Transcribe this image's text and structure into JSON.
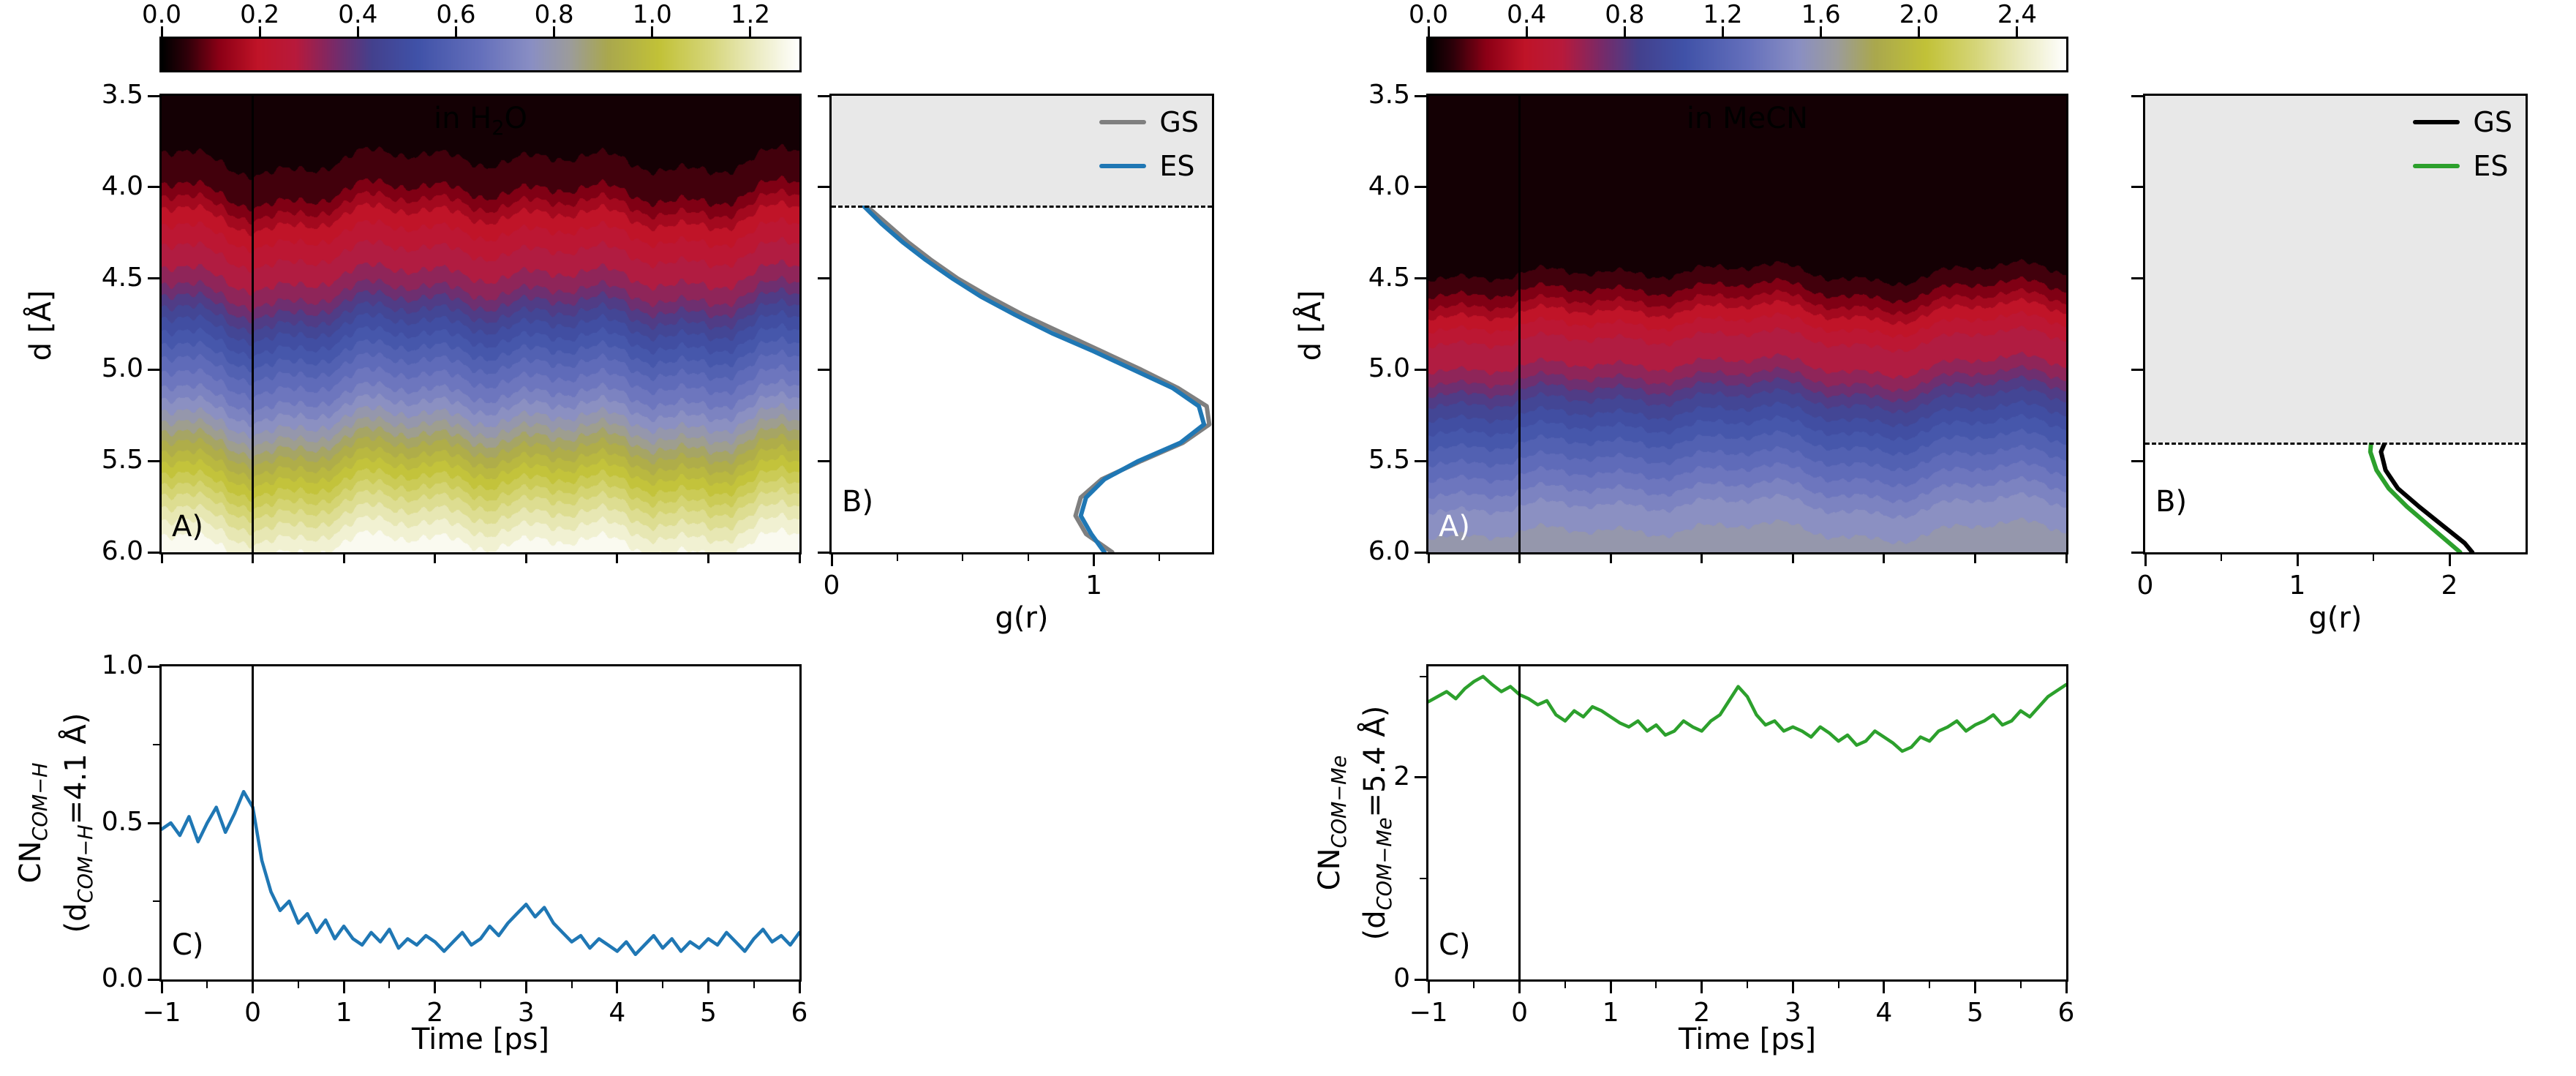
{
  "figure_background": "#ffffff",
  "colormap_stops": [
    [
      0.0,
      "#000000"
    ],
    [
      0.04,
      "#30000a"
    ],
    [
      0.09,
      "#8c0016"
    ],
    [
      0.15,
      "#c01428"
    ],
    [
      0.21,
      "#b81a3c"
    ],
    [
      0.27,
      "#7a2a68"
    ],
    [
      0.33,
      "#44418e"
    ],
    [
      0.4,
      "#4052a8"
    ],
    [
      0.5,
      "#6570bc"
    ],
    [
      0.58,
      "#8a8fc4"
    ],
    [
      0.64,
      "#9c9c9c"
    ],
    [
      0.7,
      "#aaa84e"
    ],
    [
      0.78,
      "#c2c238"
    ],
    [
      0.86,
      "#d6d67a"
    ],
    [
      0.93,
      "#ebebc0"
    ],
    [
      1.0,
      "#ffffff"
    ]
  ],
  "chart_data": [
    {
      "id": "h2o_heatmap",
      "type": "heatmap",
      "panel_label": "A)",
      "panel_label_color": "#000000",
      "title_pre": "in H",
      "title_sub": "2",
      "title_post": "O",
      "ylabel": "d [Å]",
      "x_range": [
        -1,
        6
      ],
      "d_range": [
        3.5,
        6.0
      ],
      "ytick_labels": [
        "3.5",
        "4.0",
        "4.5",
        "5.0",
        "5.5",
        "6.0"
      ],
      "ytick_values": [
        3.5,
        4.0,
        4.5,
        5.0,
        5.5,
        6.0
      ],
      "xtick_values": [
        -1,
        0,
        1,
        2,
        3,
        4,
        5,
        6
      ],
      "event_time": 0,
      "vmax": 1.3,
      "levels": 30,
      "noise_amp": 0.1,
      "colorbar": {
        "tick_labels": [
          "0.0",
          "0.2",
          "0.4",
          "0.6",
          "0.8",
          "1.0",
          "1.2"
        ],
        "tick_values": [
          0,
          0.2,
          0.4,
          0.6,
          0.8,
          1.0,
          1.2
        ]
      },
      "profile": [
        [
          3.5,
          0.02
        ],
        [
          3.95,
          0.05
        ],
        [
          4.05,
          0.1
        ],
        [
          4.15,
          0.17
        ],
        [
          4.3,
          0.24
        ],
        [
          4.45,
          0.29
        ],
        [
          4.55,
          0.33
        ],
        [
          4.65,
          0.4
        ],
        [
          4.75,
          0.47
        ],
        [
          4.85,
          0.53
        ],
        [
          5.0,
          0.62
        ],
        [
          5.15,
          0.7
        ],
        [
          5.3,
          0.8
        ],
        [
          5.45,
          0.92
        ],
        [
          5.6,
          1.03
        ],
        [
          5.75,
          1.14
        ],
        [
          5.9,
          1.23
        ],
        [
          6.0,
          1.28
        ]
      ]
    },
    {
      "id": "h2o_gr",
      "type": "line",
      "panel_label": "B)",
      "xlabel": "g(r)",
      "x_range": [
        0,
        1.45
      ],
      "xtick_labels": [
        "0",
        "1"
      ],
      "xtick_values": [
        0,
        1
      ],
      "xminor_values": [
        0.25,
        0.5,
        0.75,
        1.25
      ],
      "d_range": [
        3.5,
        6.0
      ],
      "cutoff_d": 4.1,
      "shade_color": "#e8e8e8",
      "legend": [
        {
          "label": "GS",
          "color": "#7f7f7f"
        },
        {
          "label": "ES",
          "color": "#1f77b4"
        }
      ],
      "series": [
        {
          "name": "GS",
          "color": "#7f7f7f",
          "points": [
            [
              3.5,
              0.09
            ],
            [
              3.8,
              0.09
            ],
            [
              3.85,
              0.05
            ],
            [
              3.9,
              0.03
            ],
            [
              4.0,
              0.07
            ],
            [
              4.1,
              0.13
            ],
            [
              4.2,
              0.21
            ],
            [
              4.3,
              0.29
            ],
            [
              4.4,
              0.38
            ],
            [
              4.5,
              0.48
            ],
            [
              4.6,
              0.6
            ],
            [
              4.7,
              0.73
            ],
            [
              4.8,
              0.88
            ],
            [
              4.9,
              1.03
            ],
            [
              5.0,
              1.18
            ],
            [
              5.1,
              1.32
            ],
            [
              5.2,
              1.43
            ],
            [
              5.3,
              1.44
            ],
            [
              5.4,
              1.34
            ],
            [
              5.5,
              1.18
            ],
            [
              5.6,
              1.03
            ],
            [
              5.7,
              0.95
            ],
            [
              5.8,
              0.93
            ],
            [
              5.9,
              0.97
            ],
            [
              6.0,
              1.07
            ]
          ]
        },
        {
          "name": "ES",
          "color": "#1f77b4",
          "points": [
            [
              3.5,
              0.01
            ],
            [
              3.7,
              0.01
            ],
            [
              3.9,
              0.03
            ],
            [
              4.0,
              0.06
            ],
            [
              4.1,
              0.12
            ],
            [
              4.2,
              0.19
            ],
            [
              4.3,
              0.27
            ],
            [
              4.4,
              0.36
            ],
            [
              4.5,
              0.46
            ],
            [
              4.6,
              0.57
            ],
            [
              4.7,
              0.7
            ],
            [
              4.8,
              0.84
            ],
            [
              4.9,
              1.0
            ],
            [
              5.0,
              1.15
            ],
            [
              5.1,
              1.3
            ],
            [
              5.2,
              1.4
            ],
            [
              5.3,
              1.42
            ],
            [
              5.4,
              1.33
            ],
            [
              5.5,
              1.17
            ],
            [
              5.6,
              1.04
            ],
            [
              5.7,
              0.97
            ],
            [
              5.8,
              0.95
            ],
            [
              5.9,
              0.99
            ],
            [
              6.0,
              1.04
            ]
          ]
        }
      ]
    },
    {
      "id": "h2o_cn",
      "type": "line",
      "panel_label": "C)",
      "xlabel": "Time [ps]",
      "ylabel_main": "CN",
      "ylabel_main_sub": "COM−H",
      "ylabel_paren_pre": "(d",
      "ylabel_paren_sub": "COM−H",
      "ylabel_paren_post": "=4.1 Å)",
      "x_range": [
        -1,
        6
      ],
      "xtick_labels": [
        "−1",
        "0",
        "1",
        "2",
        "3",
        "4",
        "5",
        "6"
      ],
      "xtick_values": [
        -1,
        0,
        1,
        2,
        3,
        4,
        5,
        6
      ],
      "y_range": [
        0,
        1.0
      ],
      "ytick_labels": [
        "0.0",
        "0.5",
        "1.0"
      ],
      "ytick_values": [
        0,
        0.5,
        1.0
      ],
      "yminor_values": [
        0.25,
        0.75
      ],
      "event_time": 0,
      "color": "#1f77b4",
      "t_start": -1,
      "t_step": 0.1,
      "values": [
        0.48,
        0.5,
        0.46,
        0.52,
        0.44,
        0.5,
        0.55,
        0.47,
        0.53,
        0.6,
        0.55,
        0.38,
        0.28,
        0.22,
        0.25,
        0.18,
        0.21,
        0.15,
        0.19,
        0.13,
        0.17,
        0.13,
        0.11,
        0.15,
        0.12,
        0.16,
        0.1,
        0.13,
        0.11,
        0.14,
        0.12,
        0.09,
        0.12,
        0.15,
        0.11,
        0.13,
        0.17,
        0.14,
        0.18,
        0.21,
        0.24,
        0.2,
        0.23,
        0.18,
        0.15,
        0.12,
        0.14,
        0.1,
        0.13,
        0.11,
        0.09,
        0.12,
        0.08,
        0.11,
        0.14,
        0.1,
        0.13,
        0.09,
        0.12,
        0.1,
        0.13,
        0.11,
        0.15,
        0.12,
        0.09,
        0.13,
        0.16,
        0.12,
        0.14,
        0.11,
        0.15
      ]
    },
    {
      "id": "mecn_heatmap",
      "type": "heatmap",
      "panel_label": "A)",
      "panel_label_color": "#ffffff",
      "title_pre": "in MeCN",
      "title_sub": "",
      "title_post": "",
      "ylabel": "d [Å]",
      "x_range": [
        -1,
        6
      ],
      "d_range": [
        3.5,
        6.0
      ],
      "ytick_labels": [
        "3.5",
        "4.0",
        "4.5",
        "5.0",
        "5.5",
        "6.0"
      ],
      "ytick_values": [
        3.5,
        4.0,
        4.5,
        5.0,
        5.5,
        6.0
      ],
      "xtick_values": [
        -1,
        0,
        1,
        2,
        3,
        4,
        5,
        6
      ],
      "event_time": 0,
      "vmax": 2.6,
      "levels": 30,
      "noise_amp": 0.07,
      "colorbar": {
        "tick_labels": [
          "0.0",
          "0.4",
          "0.8",
          "1.2",
          "1.6",
          "2.0",
          "2.4"
        ],
        "tick_values": [
          0,
          0.4,
          0.8,
          1.2,
          1.6,
          2.0,
          2.4
        ]
      },
      "profile": [
        [
          3.5,
          0.02
        ],
        [
          4.35,
          0.04
        ],
        [
          4.5,
          0.1
        ],
        [
          4.6,
          0.22
        ],
        [
          4.7,
          0.38
        ],
        [
          4.85,
          0.54
        ],
        [
          5.0,
          0.62
        ],
        [
          5.15,
          0.85
        ],
        [
          5.35,
          1.08
        ],
        [
          5.55,
          1.28
        ],
        [
          5.75,
          1.48
        ],
        [
          5.9,
          1.57
        ],
        [
          6.0,
          1.64
        ]
      ]
    },
    {
      "id": "mecn_gr",
      "type": "line",
      "panel_label": "B)",
      "xlabel": "g(r)",
      "x_range": [
        0,
        2.5
      ],
      "xtick_labels": [
        "0",
        "1",
        "2"
      ],
      "xtick_values": [
        0,
        1,
        2
      ],
      "xminor_values": [
        0.5,
        1.5
      ],
      "d_range": [
        3.5,
        6.0
      ],
      "cutoff_d": 5.4,
      "shade_color": "#e8e8e8",
      "legend": [
        {
          "label": "GS",
          "color": "#000000"
        },
        {
          "label": "ES",
          "color": "#2ca02c"
        }
      ],
      "series": [
        {
          "name": "GS",
          "color": "#000000",
          "points": [
            [
              3.5,
              0.01
            ],
            [
              4.3,
              0.02
            ],
            [
              4.45,
              0.06
            ],
            [
              4.55,
              0.14
            ],
            [
              4.65,
              0.32
            ],
            [
              4.75,
              0.6
            ],
            [
              4.85,
              0.92
            ],
            [
              4.95,
              1.18
            ],
            [
              5.05,
              1.36
            ],
            [
              5.15,
              1.48
            ],
            [
              5.25,
              1.57
            ],
            [
              5.35,
              1.6
            ],
            [
              5.45,
              1.55
            ],
            [
              5.55,
              1.58
            ],
            [
              5.65,
              1.66
            ],
            [
              5.75,
              1.8
            ],
            [
              5.85,
              1.95
            ],
            [
              5.95,
              2.1
            ],
            [
              6.0,
              2.15
            ]
          ]
        },
        {
          "name": "ES",
          "color": "#2ca02c",
          "points": [
            [
              3.5,
              0.01
            ],
            [
              4.3,
              0.02
            ],
            [
              4.45,
              0.05
            ],
            [
              4.55,
              0.12
            ],
            [
              4.65,
              0.28
            ],
            [
              4.75,
              0.55
            ],
            [
              4.85,
              0.85
            ],
            [
              4.95,
              1.1
            ],
            [
              5.05,
              1.28
            ],
            [
              5.15,
              1.4
            ],
            [
              5.25,
              1.47
            ],
            [
              5.35,
              1.49
            ],
            [
              5.45,
              1.48
            ],
            [
              5.55,
              1.52
            ],
            [
              5.65,
              1.6
            ],
            [
              5.75,
              1.72
            ],
            [
              5.85,
              1.86
            ],
            [
              5.95,
              2.0
            ],
            [
              6.0,
              2.07
            ]
          ]
        }
      ]
    },
    {
      "id": "mecn_cn",
      "type": "line",
      "panel_label": "C)",
      "xlabel": "Time [ps]",
      "ylabel_main": "CN",
      "ylabel_main_sub": "COM−Me",
      "ylabel_paren_pre": "(d",
      "ylabel_paren_sub": "COM−Me",
      "ylabel_paren_post": "=5.4 Å)",
      "x_range": [
        -1,
        6
      ],
      "xtick_labels": [
        "−1",
        "0",
        "1",
        "2",
        "3",
        "4",
        "5",
        "6"
      ],
      "xtick_values": [
        -1,
        0,
        1,
        2,
        3,
        4,
        5,
        6
      ],
      "y_range": [
        0,
        3.1
      ],
      "ytick_labels": [
        "0",
        "2"
      ],
      "ytick_values": [
        0,
        2
      ],
      "yminor_values": [
        1,
        3
      ],
      "event_time": 0,
      "color": "#2ca02c",
      "t_start": -1,
      "t_step": 0.1,
      "values": [
        2.75,
        2.8,
        2.85,
        2.78,
        2.88,
        2.95,
        3.0,
        2.92,
        2.85,
        2.9,
        2.82,
        2.78,
        2.72,
        2.76,
        2.62,
        2.56,
        2.66,
        2.6,
        2.7,
        2.66,
        2.6,
        2.54,
        2.5,
        2.56,
        2.46,
        2.52,
        2.42,
        2.46,
        2.56,
        2.5,
        2.46,
        2.56,
        2.62,
        2.76,
        2.9,
        2.8,
        2.62,
        2.52,
        2.56,
        2.46,
        2.5,
        2.46,
        2.4,
        2.5,
        2.44,
        2.36,
        2.42,
        2.32,
        2.36,
        2.46,
        2.4,
        2.34,
        2.26,
        2.3,
        2.4,
        2.36,
        2.46,
        2.5,
        2.56,
        2.46,
        2.52,
        2.56,
        2.62,
        2.52,
        2.56,
        2.66,
        2.6,
        2.7,
        2.8,
        2.86,
        2.92
      ]
    }
  ]
}
